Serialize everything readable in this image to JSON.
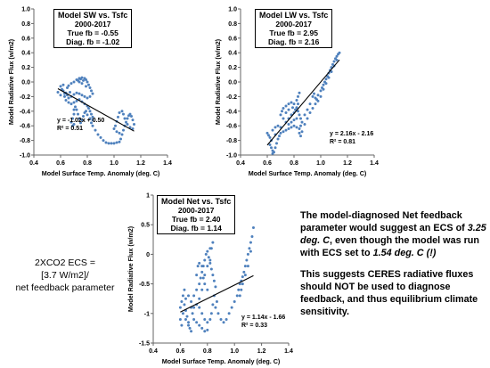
{
  "chart_data": [
    {
      "type": "scatter",
      "id": "sw",
      "title": "Model SW vs. Tsfc",
      "subtitle": "2000-2017",
      "true_fb": "True fb = -0.55",
      "diag_fb": "Diag. fb = -1.02",
      "xlabel": "Model Surface Temp. Anomaly (deg. C)",
      "ylabel": "Model Radiative Flux (w/m2)",
      "xlim": [
        0.4,
        1.4
      ],
      "ylim": [
        -1.0,
        1.0
      ],
      "xticks": [
        0.4,
        0.6,
        0.8,
        1.0,
        1.2,
        1.4
      ],
      "xtick_labels": [
        "0.4",
        "0.6",
        "0.8",
        "1.0",
        "1.2",
        "1.4"
      ],
      "yticks": [
        -1.0,
        -0.8,
        -0.6,
        -0.4,
        -0.2,
        0.0,
        0.2,
        0.4,
        0.6,
        0.8,
        1.0
      ],
      "ytick_labels": [
        "-1.0",
        "-0.8",
        "-0.6",
        "-0.4",
        "-0.2",
        "0.0",
        "0.2",
        "0.4",
        "0.6",
        "0.8",
        "1.0"
      ],
      "fit_equation": "y = -1.02x + 0.50",
      "r_squared": "R² = 0.51",
      "fit": {
        "slope": -1.02,
        "intercept": 0.5,
        "x_range": [
          0.58,
          1.15
        ]
      },
      "point_color": "#4f81bd",
      "points": [
        [
          0.58,
          -0.14
        ],
        [
          0.6,
          -0.18
        ],
        [
          0.62,
          -0.12
        ],
        [
          0.63,
          -0.2
        ],
        [
          0.61,
          -0.1
        ],
        [
          0.64,
          -0.15
        ],
        [
          0.65,
          -0.08
        ],
        [
          0.66,
          -0.05
        ],
        [
          0.68,
          -0.02
        ],
        [
          0.7,
          0.0
        ],
        [
          0.72,
          0.03
        ],
        [
          0.74,
          0.05
        ],
        [
          0.76,
          0.06
        ],
        [
          0.78,
          0.05
        ],
        [
          0.79,
          0.03
        ],
        [
          0.8,
          0.0
        ],
        [
          0.81,
          -0.04
        ],
        [
          0.82,
          -0.08
        ],
        [
          0.83,
          -0.12
        ],
        [
          0.84,
          -0.16
        ],
        [
          0.82,
          -0.2
        ],
        [
          0.8,
          -0.22
        ],
        [
          0.78,
          -0.2
        ],
        [
          0.76,
          -0.18
        ],
        [
          0.74,
          -0.16
        ],
        [
          0.72,
          -0.15
        ],
        [
          0.7,
          -0.17
        ],
        [
          0.68,
          -0.2
        ],
        [
          0.66,
          -0.22
        ],
        [
          0.64,
          -0.25
        ],
        [
          0.66,
          -0.28
        ],
        [
          0.68,
          -0.3
        ],
        [
          0.7,
          -0.28
        ],
        [
          0.72,
          -0.26
        ],
        [
          0.74,
          -0.24
        ],
        [
          0.76,
          -0.27
        ],
        [
          0.78,
          -0.3
        ],
        [
          0.8,
          -0.33
        ],
        [
          0.81,
          -0.36
        ],
        [
          0.82,
          -0.4
        ],
        [
          0.83,
          -0.44
        ],
        [
          0.84,
          -0.48
        ],
        [
          0.84,
          -0.52
        ],
        [
          0.83,
          -0.56
        ],
        [
          0.82,
          -0.5
        ],
        [
          0.8,
          -0.45
        ],
        [
          0.79,
          -0.4
        ],
        [
          0.78,
          -0.42
        ],
        [
          0.77,
          -0.47
        ],
        [
          0.76,
          -0.52
        ],
        [
          0.75,
          -0.56
        ],
        [
          0.74,
          -0.5
        ],
        [
          0.73,
          -0.44
        ],
        [
          0.72,
          -0.38
        ],
        [
          0.71,
          -0.34
        ],
        [
          0.7,
          -0.38
        ],
        [
          0.7,
          -0.44
        ],
        [
          0.69,
          -0.5
        ],
        [
          0.68,
          -0.55
        ],
        [
          0.69,
          -0.6
        ],
        [
          0.7,
          -0.58
        ],
        [
          0.84,
          -0.6
        ],
        [
          0.86,
          -0.66
        ],
        [
          0.88,
          -0.72
        ],
        [
          0.9,
          -0.76
        ],
        [
          0.92,
          -0.8
        ],
        [
          0.94,
          -0.83
        ],
        [
          0.96,
          -0.84
        ],
        [
          0.98,
          -0.84
        ],
        [
          1.0,
          -0.84
        ],
        [
          1.02,
          -0.83
        ],
        [
          1.04,
          -0.82
        ],
        [
          1.05,
          -0.78
        ],
        [
          1.06,
          -0.72
        ],
        [
          1.07,
          -0.66
        ],
        [
          1.08,
          -0.6
        ],
        [
          1.09,
          -0.55
        ],
        [
          1.1,
          -0.5
        ],
        [
          1.11,
          -0.46
        ],
        [
          1.12,
          -0.44
        ],
        [
          1.13,
          -0.47
        ],
        [
          1.14,
          -0.52
        ],
        [
          1.15,
          -0.58
        ],
        [
          1.14,
          -0.64
        ],
        [
          1.12,
          -0.62
        ],
        [
          1.1,
          -0.58
        ],
        [
          1.08,
          -0.5
        ],
        [
          1.07,
          -0.44
        ],
        [
          1.06,
          -0.4
        ],
        [
          1.04,
          -0.42
        ],
        [
          1.03,
          -0.48
        ],
        [
          1.02,
          -0.54
        ],
        [
          1.01,
          -0.6
        ],
        [
          1.0,
          -0.64
        ],
        [
          1.02,
          -0.68
        ],
        [
          1.04,
          -0.7
        ],
        [
          0.74,
          0.0
        ],
        [
          0.76,
          -0.02
        ],
        [
          0.73,
          0.02
        ],
        [
          0.75,
          0.04
        ],
        [
          0.77,
          0.02
        ],
        [
          0.79,
          -0.06
        ],
        [
          0.6,
          -0.06
        ],
        [
          0.62,
          -0.04
        ],
        [
          0.63,
          -0.16
        ],
        [
          0.65,
          -0.18
        ],
        [
          0.67,
          -0.14
        ]
      ]
    },
    {
      "type": "scatter",
      "id": "lw",
      "title": "Model LW vs. Tsfc",
      "subtitle": "2000-2017",
      "true_fb": "True fb = 2.95",
      "diag_fb": "Diag. fb = 2.16",
      "xlabel": "Model Surface Temp. Anomaly (deg. C)",
      "ylabel": "Model Radiative Flux (w/m2)",
      "xlim": [
        0.4,
        1.4
      ],
      "ylim": [
        -1.0,
        1.0
      ],
      "xticks": [
        0.4,
        0.6,
        0.8,
        1.0,
        1.2,
        1.4
      ],
      "xtick_labels": [
        "0.4",
        "0.6",
        "0.8",
        "1.0",
        "1.2",
        "1.4"
      ],
      "yticks": [
        -1.0,
        -0.8,
        -0.6,
        -0.4,
        -0.2,
        0.0,
        0.2,
        0.4,
        0.6,
        0.8,
        1.0
      ],
      "ytick_labels": [
        "-1.0",
        "-0.8",
        "-0.6",
        "-0.4",
        "-0.2",
        "0.0",
        "0.2",
        "0.4",
        "0.6",
        "0.8",
        "1.0"
      ],
      "fit_equation": "y = 2.16x - 2.16",
      "r_squared": "R² = 0.81",
      "fit": {
        "slope": 2.16,
        "intercept": -2.16,
        "x_range": [
          0.6,
          1.14
        ]
      },
      "point_color": "#4f81bd",
      "points": [
        [
          0.6,
          -0.7
        ],
        [
          0.61,
          -0.73
        ],
        [
          0.62,
          -0.76
        ],
        [
          0.63,
          -0.8
        ],
        [
          0.62,
          -0.86
        ],
        [
          0.63,
          -0.9
        ],
        [
          0.64,
          -0.94
        ],
        [
          0.65,
          -0.96
        ],
        [
          0.64,
          -0.98
        ],
        [
          0.66,
          -0.9
        ],
        [
          0.67,
          -0.84
        ],
        [
          0.68,
          -0.78
        ],
        [
          0.69,
          -0.74
        ],
        [
          0.7,
          -0.7
        ],
        [
          0.72,
          -0.68
        ],
        [
          0.74,
          -0.66
        ],
        [
          0.76,
          -0.64
        ],
        [
          0.78,
          -0.62
        ],
        [
          0.8,
          -0.6
        ],
        [
          0.82,
          -0.62
        ],
        [
          0.84,
          -0.64
        ],
        [
          0.85,
          -0.6
        ],
        [
          0.86,
          -0.55
        ],
        [
          0.85,
          -0.5
        ],
        [
          0.84,
          -0.45
        ],
        [
          0.83,
          -0.4
        ],
        [
          0.82,
          -0.35
        ],
        [
          0.8,
          -0.3
        ],
        [
          0.78,
          -0.28
        ],
        [
          0.76,
          -0.3
        ],
        [
          0.74,
          -0.33
        ],
        [
          0.72,
          -0.36
        ],
        [
          0.71,
          -0.4
        ],
        [
          0.7,
          -0.45
        ],
        [
          0.72,
          -0.5
        ],
        [
          0.74,
          -0.55
        ],
        [
          0.76,
          -0.5
        ],
        [
          0.78,
          -0.45
        ],
        [
          0.8,
          -0.42
        ],
        [
          0.82,
          -0.25
        ],
        [
          0.83,
          -0.2
        ],
        [
          0.84,
          -0.15
        ],
        [
          0.82,
          -0.5
        ],
        [
          0.8,
          -0.52
        ],
        [
          0.78,
          -0.55
        ],
        [
          0.76,
          -0.58
        ],
        [
          0.84,
          -0.7
        ],
        [
          0.85,
          -0.74
        ],
        [
          0.86,
          -0.68
        ],
        [
          0.88,
          -0.58
        ],
        [
          0.9,
          -0.5
        ],
        [
          0.92,
          -0.42
        ],
        [
          0.94,
          -0.36
        ],
        [
          0.96,
          -0.3
        ],
        [
          0.97,
          -0.24
        ],
        [
          0.98,
          -0.18
        ],
        [
          1.0,
          -0.12
        ],
        [
          1.01,
          -0.08
        ],
        [
          1.02,
          -0.04
        ],
        [
          1.03,
          0.0
        ],
        [
          1.04,
          0.04
        ],
        [
          1.05,
          0.08
        ],
        [
          1.06,
          0.12
        ],
        [
          1.07,
          0.16
        ],
        [
          1.08,
          0.2
        ],
        [
          1.09,
          0.24
        ],
        [
          1.1,
          0.28
        ],
        [
          1.11,
          0.32
        ],
        [
          1.12,
          0.35
        ],
        [
          1.13,
          0.38
        ],
        [
          1.14,
          0.4
        ],
        [
          1.12,
          0.3
        ],
        [
          1.1,
          0.22
        ],
        [
          1.08,
          0.14
        ],
        [
          1.06,
          0.06
        ],
        [
          1.04,
          -0.02
        ],
        [
          1.02,
          -0.1
        ],
        [
          1.0,
          -0.2
        ],
        [
          0.98,
          -0.26
        ],
        [
          0.96,
          -0.22
        ],
        [
          0.95,
          -0.16
        ],
        [
          0.94,
          -0.2
        ],
        [
          0.92,
          -0.3
        ],
        [
          0.9,
          -0.38
        ],
        [
          0.88,
          -0.45
        ],
        [
          0.66,
          -0.62
        ],
        [
          0.68,
          -0.6
        ],
        [
          0.7,
          -0.62
        ],
        [
          0.64,
          -0.66
        ],
        [
          0.66,
          -0.72
        ],
        [
          0.74,
          -0.42
        ],
        [
          0.76,
          -0.38
        ],
        [
          0.79,
          -0.35
        ],
        [
          0.81,
          -0.38
        ],
        [
          0.83,
          -0.3
        ]
      ]
    },
    {
      "type": "scatter",
      "id": "net",
      "title": "Model Net vs. Tsfc",
      "subtitle": "2000-2017",
      "true_fb": "True fb = 2.40",
      "diag_fb": "Diag. fb = 1.14",
      "xlabel": "Model Surface Temp. Anomaly (deg. C)",
      "ylabel": "Model Radiative Flux (w/m2)",
      "xlim": [
        0.4,
        1.4
      ],
      "ylim": [
        -1.5,
        1.0
      ],
      "xticks": [
        0.4,
        0.6,
        0.8,
        1.0,
        1.2,
        1.4
      ],
      "xtick_labels": [
        "0.4",
        "0.6",
        "0.8",
        "1.0",
        "1.2",
        "1.4"
      ],
      "yticks": [
        -1.5,
        -1.0,
        -0.5,
        0.0,
        0.5,
        1.0
      ],
      "ytick_labels": [
        "-1.5",
        "-1",
        "-0.5",
        "0",
        "0.5",
        "1"
      ],
      "fit_equation": "y = 1.14x - 1.66",
      "r_squared": "R² = 0.33",
      "fit": {
        "slope": 1.14,
        "intercept": -1.66,
        "x_range": [
          0.6,
          1.14
        ]
      },
      "point_color": "#4f81bd",
      "points": [
        [
          0.6,
          -0.9
        ],
        [
          0.61,
          -0.8
        ],
        [
          0.62,
          -0.7
        ],
        [
          0.63,
          -0.85
        ],
        [
          0.64,
          -0.95
        ],
        [
          0.65,
          -1.05
        ],
        [
          0.66,
          -1.15
        ],
        [
          0.67,
          -1.25
        ],
        [
          0.68,
          -1.3
        ],
        [
          0.66,
          -1.2
        ],
        [
          0.64,
          -1.1
        ],
        [
          0.62,
          -1.0
        ],
        [
          0.68,
          -0.8
        ],
        [
          0.7,
          -0.7
        ],
        [
          0.72,
          -0.6
        ],
        [
          0.74,
          -0.5
        ],
        [
          0.75,
          -0.4
        ],
        [
          0.76,
          -0.3
        ],
        [
          0.77,
          -0.2
        ],
        [
          0.78,
          -0.1
        ],
        [
          0.79,
          0.0
        ],
        [
          0.8,
          0.05
        ],
        [
          0.81,
          -0.05
        ],
        [
          0.82,
          -0.15
        ],
        [
          0.83,
          -0.25
        ],
        [
          0.84,
          -0.35
        ],
        [
          0.85,
          -0.45
        ],
        [
          0.86,
          -0.55
        ],
        [
          0.85,
          -0.7
        ],
        [
          0.84,
          -0.85
        ],
        [
          0.83,
          -1.0
        ],
        [
          0.82,
          -1.1
        ],
        [
          0.8,
          -1.15
        ],
        [
          0.78,
          -1.1
        ],
        [
          0.76,
          -1.0
        ],
        [
          0.74,
          -0.9
        ],
        [
          0.72,
          -0.85
        ],
        [
          0.7,
          -0.9
        ],
        [
          0.69,
          -1.0
        ],
        [
          0.7,
          -1.1
        ],
        [
          0.72,
          -1.15
        ],
        [
          0.74,
          -1.2
        ],
        [
          0.76,
          -1.25
        ],
        [
          0.78,
          -1.3
        ],
        [
          0.8,
          -1.28
        ],
        [
          0.82,
          -0.1
        ],
        [
          0.83,
          0.1
        ],
        [
          0.84,
          0.2
        ],
        [
          0.82,
          0.1
        ],
        [
          0.8,
          -0.2
        ],
        [
          0.78,
          -0.35
        ],
        [
          0.76,
          -0.6
        ],
        [
          0.74,
          -0.75
        ],
        [
          0.72,
          -0.35
        ],
        [
          0.73,
          -0.2
        ],
        [
          0.88,
          -1.0
        ],
        [
          0.9,
          -1.1
        ],
        [
          0.92,
          -1.15
        ],
        [
          0.94,
          -1.1
        ],
        [
          0.96,
          -1.0
        ],
        [
          0.98,
          -0.9
        ],
        [
          1.0,
          -0.8
        ],
        [
          1.02,
          -0.7
        ],
        [
          1.03,
          -0.6
        ],
        [
          1.04,
          -0.5
        ],
        [
          1.05,
          -0.45
        ],
        [
          1.06,
          -0.38
        ],
        [
          1.07,
          -0.3
        ],
        [
          1.08,
          -0.2
        ],
        [
          1.09,
          -0.1
        ],
        [
          1.1,
          0.0
        ],
        [
          1.11,
          0.1
        ],
        [
          1.12,
          0.2
        ],
        [
          1.13,
          0.3
        ],
        [
          1.14,
          0.45
        ],
        [
          1.12,
          0.05
        ],
        [
          1.1,
          -0.2
        ],
        [
          1.08,
          -0.35
        ],
        [
          1.06,
          -0.5
        ],
        [
          1.05,
          -0.6
        ],
        [
          1.04,
          -0.7
        ],
        [
          0.63,
          -0.6
        ],
        [
          0.64,
          -0.75
        ],
        [
          0.66,
          -0.7
        ],
        [
          0.68,
          -0.9
        ],
        [
          0.86,
          -0.9
        ],
        [
          0.87,
          -0.8
        ],
        [
          0.78,
          -0.5
        ],
        [
          0.8,
          -0.6
        ],
        [
          0.76,
          -0.2
        ],
        [
          0.74,
          -0.15
        ],
        [
          0.77,
          -0.4
        ],
        [
          0.6,
          -1.1
        ],
        [
          0.61,
          -1.2
        ]
      ]
    }
  ],
  "ecs_note": {
    "line1": "2XCO2 ECS =",
    "line2": "[3.7 W/m2]/",
    "line3": "net feedback parameter"
  },
  "conclusion": {
    "p1_part1": "The model-diagnosed Net feedback parameter would suggest an ECS of ",
    "p1_em1": "3.25 deg. C",
    "p1_part2": ", even though the model was run with ECS set to ",
    "p1_em2": "1.54 deg. C (!)",
    "p2": "This suggests CERES radiative fluxes should NOT be used to diagnose feedback, and thus equilibrium climate sensitivity."
  }
}
